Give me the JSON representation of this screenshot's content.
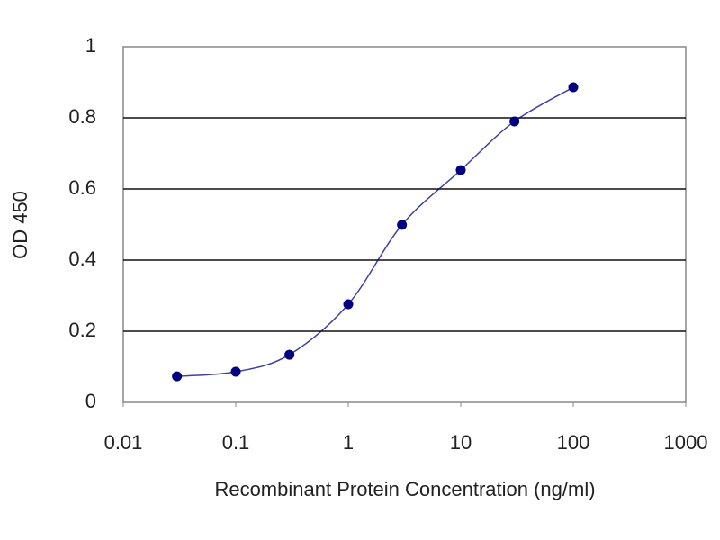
{
  "chart_data": {
    "type": "line",
    "x_label": "Recombinant Protein Concentration (ng/ml)",
    "y_label": "OD 450",
    "x": [
      0.03,
      0.1,
      0.3,
      1,
      3,
      10,
      30,
      100
    ],
    "series": [
      {
        "color": "#000080",
        "values": [
          0.073,
          0.086,
          0.134,
          0.276,
          0.499,
          0.653,
          0.79,
          0.886
        ]
      }
    ],
    "xscale": "log",
    "xlim": [
      0.01,
      1000
    ],
    "xticks": [
      0.01,
      0.1,
      1,
      10,
      100,
      1000
    ],
    "ylim": [
      0,
      1
    ],
    "yticks": [
      0,
      0.2,
      0.4,
      0.6,
      0.8,
      1
    ],
    "grid": true
  }
}
